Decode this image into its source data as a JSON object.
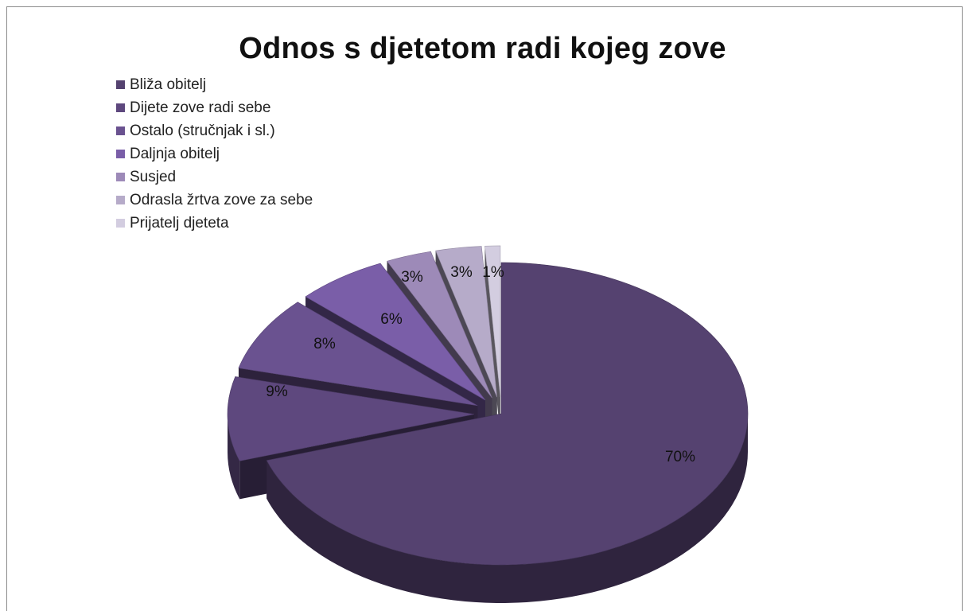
{
  "chart_data": {
    "type": "pie",
    "title": "Odnos s djetetom radi kojeg zove",
    "legend_position": "top-left",
    "categories": [
      "Bliža obitelj",
      "Dijete zove radi sebe",
      "Ostalo (stručnjak i sl.)",
      "Daljnja obitelj",
      "Susjed",
      "Odrasla žrtva zove za sebe",
      "Prijatelj djeteta"
    ],
    "values": [
      70,
      9,
      8,
      6,
      3,
      3,
      1
    ],
    "labels": [
      "70%",
      "9%",
      "8%",
      "6%",
      "3%",
      "3%",
      "1%"
    ],
    "colors": [
      "#554270",
      "#5e487e",
      "#6a5290",
      "#7a5ea8",
      "#9d8ab8",
      "#b6abc9",
      "#d3cde0"
    ],
    "style": "3d-exploded"
  }
}
